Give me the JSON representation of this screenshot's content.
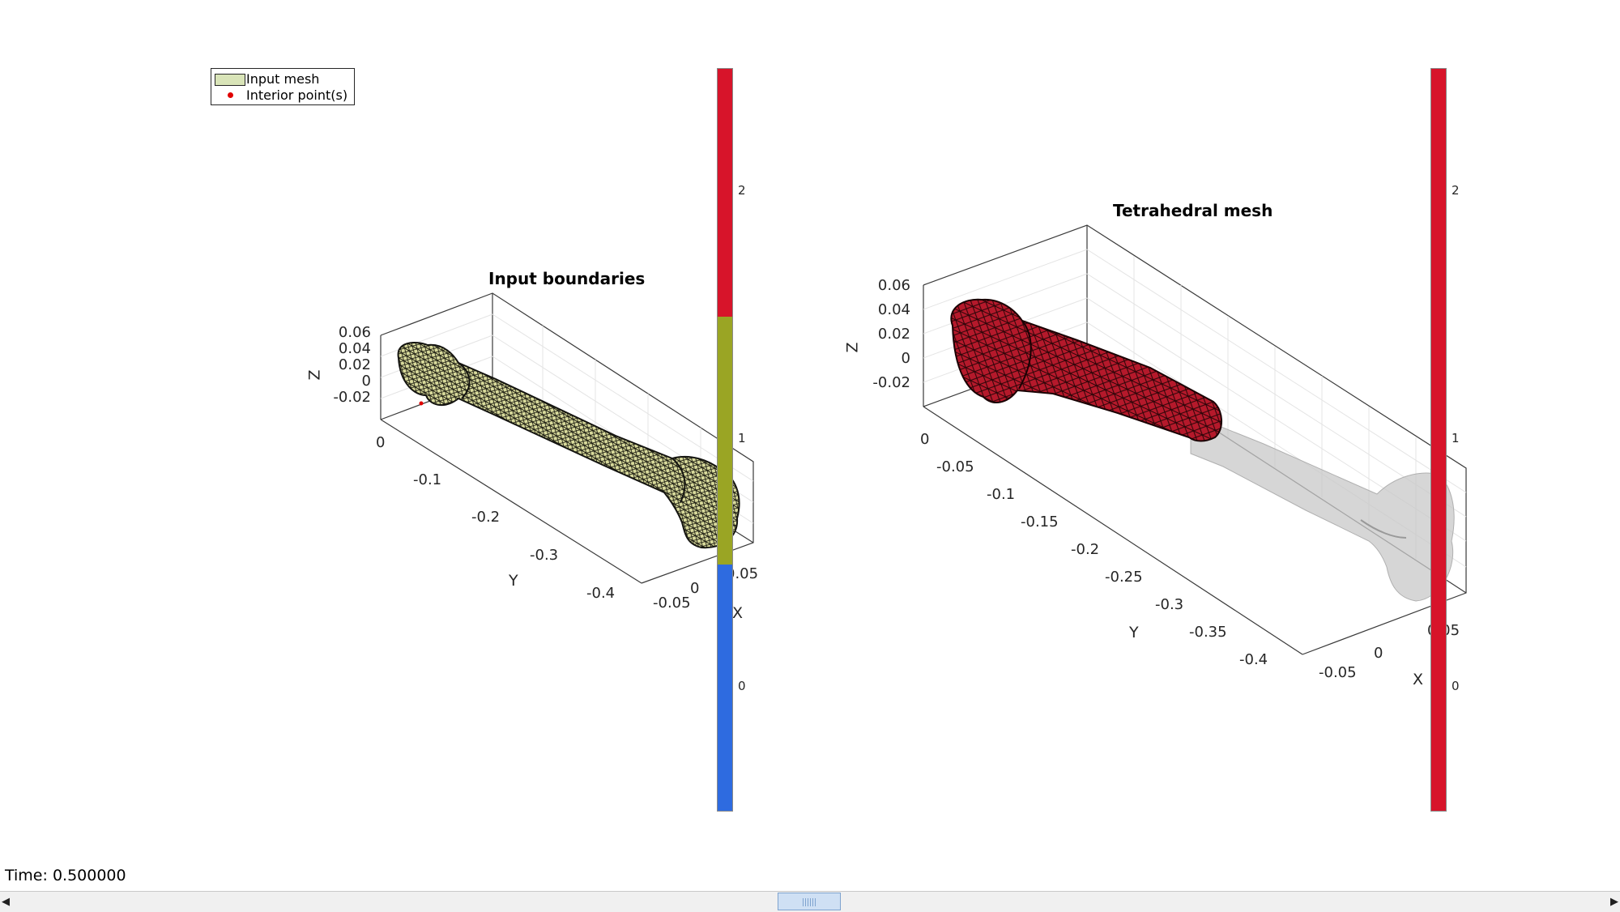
{
  "left_plot": {
    "title": "Input boundaries",
    "z_label": "Z",
    "y_label": "Y",
    "x_label": "X",
    "z_ticks": [
      "0.06",
      "0.04",
      "0.02",
      "0",
      "-0.02"
    ],
    "y_ticks": [
      "0",
      "-0.1",
      "-0.2",
      "-0.3",
      "-0.4"
    ],
    "x_ticks": [
      "-0.05",
      "0",
      "0.05"
    ],
    "legend": {
      "items": [
        {
          "label": "Input mesh",
          "color": "#d9e4b8"
        },
        {
          "label": "Interior point(s)",
          "color": "#e00000"
        }
      ]
    },
    "mesh_color": "#c8c98a",
    "colorbar": {
      "ticks": [
        "2",
        "1",
        "0"
      ],
      "segments": [
        {
          "value": 2,
          "color": "#d7142a"
        },
        {
          "value": 1,
          "color": "#9aa524"
        },
        {
          "value": 0,
          "color": "#2e6be0"
        }
      ]
    }
  },
  "right_plot": {
    "title": "Tetrahedral mesh",
    "z_label": "Z",
    "y_label": "Y",
    "x_label": "X",
    "z_ticks": [
      "0.06",
      "0.04",
      "0.02",
      "0",
      "-0.02"
    ],
    "y_ticks": [
      "0",
      "-0.05",
      "-0.1",
      "-0.15",
      "-0.2",
      "-0.25",
      "-0.3",
      "-0.35",
      "-0.4"
    ],
    "x_ticks": [
      "-0.05",
      "0",
      "0.05"
    ],
    "mesh_color": "#b5192b",
    "ghost_color": "#c8c8c8",
    "colorbar": {
      "ticks": [
        "2",
        "1",
        "0"
      ],
      "segments": [
        {
          "value": 2,
          "color": "#d7142a"
        }
      ]
    }
  },
  "status": {
    "time_text": "Time: 0.500000"
  },
  "scrollbar": {
    "left_arrow_icon": "triangle-left-icon",
    "right_arrow_icon": "triangle-right-icon"
  }
}
